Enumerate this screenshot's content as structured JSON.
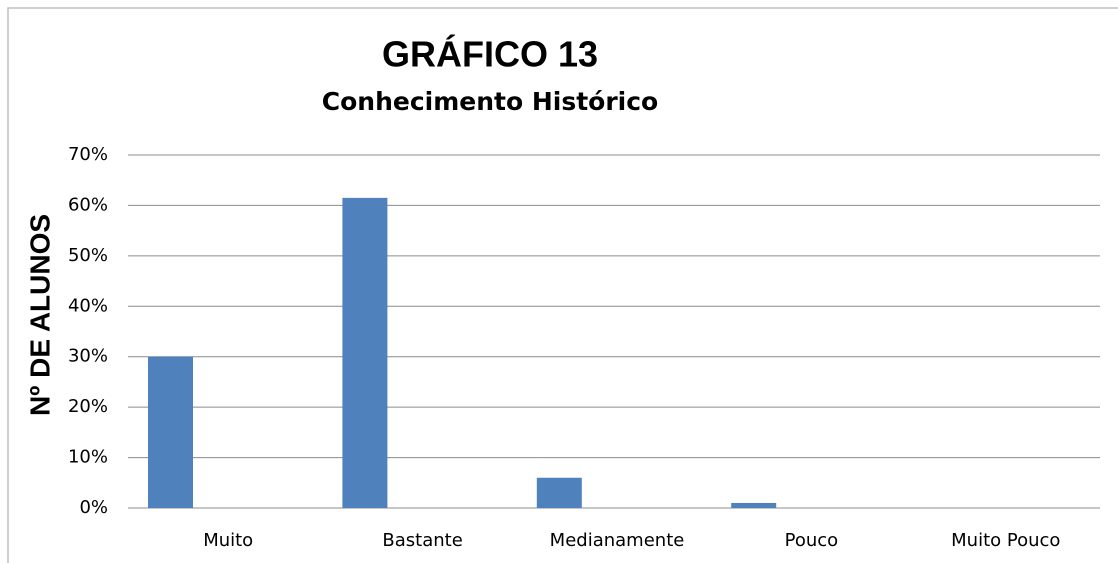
{
  "chart_data": {
    "type": "bar",
    "title": "GRÁFICO 13",
    "subtitle": "Conhecimento Histórico",
    "y_label": "Nº DE ALUNOS",
    "categories": [
      "Muito",
      "Bastante",
      "Medianamente",
      "Pouco",
      "Muito Pouco"
    ],
    "values": [
      30,
      61.5,
      6,
      1,
      0
    ],
    "color": "#4f81bd",
    "ylim": [
      0,
      70
    ],
    "yticks": [
      {
        "value": 0,
        "label": "0%"
      },
      {
        "value": 10,
        "label": "10%"
      },
      {
        "value": 20,
        "label": "20%"
      },
      {
        "value": 30,
        "label": "30%"
      },
      {
        "value": 40,
        "label": "40%"
      },
      {
        "value": 50,
        "label": "50%"
      },
      {
        "value": 60,
        "label": "60%"
      },
      {
        "value": 70,
        "label": "70%"
      }
    ],
    "grid": true
  }
}
